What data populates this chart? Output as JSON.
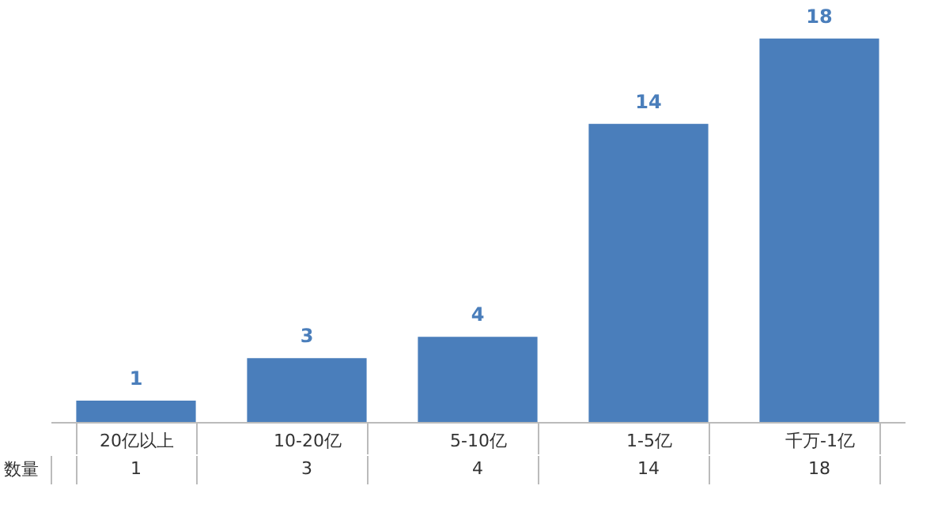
{
  "chart_data": {
    "type": "bar",
    "categories": [
      "20亿以上",
      "10-20亿",
      "5-10亿",
      "1-5亿",
      "千万-1亿"
    ],
    "series": [
      {
        "name": "数量",
        "color": "#4a7ebb",
        "values": [
          1,
          3,
          4,
          14,
          18
        ]
      }
    ],
    "annotations": [
      "1",
      "3",
      "4",
      "14",
      "18"
    ],
    "data_labels": true,
    "grid": false,
    "legend": false
  }
}
